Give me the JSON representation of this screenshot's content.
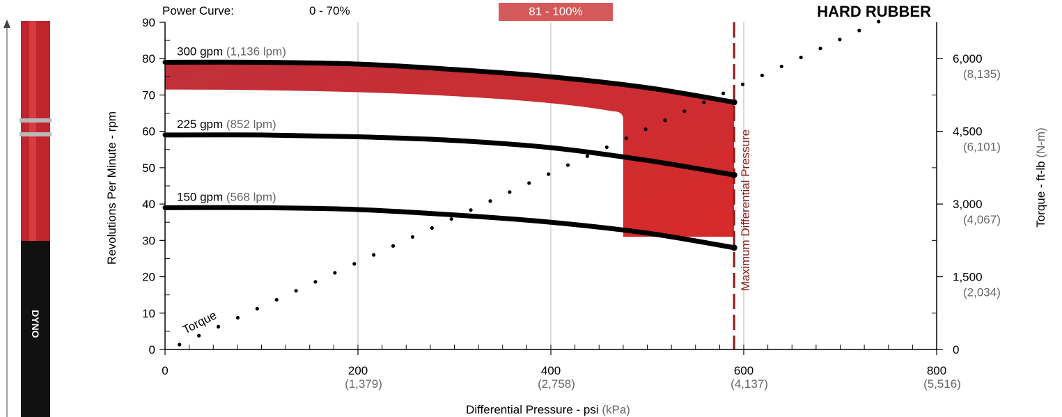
{
  "header": {
    "power_curve_label": "Power Curve:",
    "range_low": "0 - 70%",
    "range_high": "81 - 100%",
    "title": "HARD RUBBER"
  },
  "colors": {
    "accent_red": "#c62a32",
    "band_fill": "#c8363c",
    "legend_box": "#d45a5a",
    "max_line": "#8b1a1a",
    "grid": "#c0c0c0",
    "secondary_text": "#666666"
  },
  "chart_data": {
    "type": "line",
    "title": "HARD RUBBER",
    "xlabel": "Differential Pressure - psi",
    "xlabel_unit": "(kPa)",
    "ylabel": "Revolutions Per Minute - rpm",
    "y2label": "Torque - ft-lb",
    "y2label_unit": "(N-m)",
    "xlim": [
      0,
      800
    ],
    "ylim": [
      0,
      90
    ],
    "y2lim": [
      0,
      6750
    ],
    "grid": true,
    "x_ticks": [
      {
        "value": 0,
        "label": "0",
        "sub": ""
      },
      {
        "value": 200,
        "label": "200",
        "sub": "(1,379)"
      },
      {
        "value": 400,
        "label": "400",
        "sub": "(2,758)"
      },
      {
        "value": 600,
        "label": "600",
        "sub": "(4,137)"
      },
      {
        "value": 800,
        "label": "800",
        "sub": "(5,516)"
      }
    ],
    "y_ticks": [
      "0",
      "10",
      "20",
      "30",
      "40",
      "50",
      "60",
      "70",
      "80",
      "90"
    ],
    "y2_ticks": [
      {
        "value": 0,
        "label": "0",
        "sub": ""
      },
      {
        "value": 1500,
        "label": "1,500",
        "sub": "(2,034)"
      },
      {
        "value": 3000,
        "label": "3,000",
        "sub": "(4,067)"
      },
      {
        "value": 4500,
        "label": "4,500",
        "sub": "(6,101)"
      },
      {
        "value": 6000,
        "label": "6,000",
        "sub": "(8,135)"
      }
    ],
    "series": [
      {
        "name": "300 gpm",
        "name_sub": "(1,136 lpm)",
        "x": [
          0,
          100,
          200,
          300,
          400,
          500,
          590
        ],
        "y": [
          79,
          79,
          78.5,
          77,
          75,
          72,
          68
        ]
      },
      {
        "name": "225 gpm",
        "name_sub": "(852 lpm)",
        "x": [
          0,
          100,
          200,
          300,
          400,
          500,
          590
        ],
        "y": [
          59,
          59,
          58.5,
          57.5,
          55.5,
          52,
          48
        ]
      },
      {
        "name": "150 gpm",
        "name_sub": "(568 lpm)",
        "x": [
          0,
          100,
          200,
          300,
          400,
          500,
          590
        ],
        "y": [
          39,
          39,
          38.5,
          37,
          35,
          32,
          28
        ]
      }
    ],
    "torque": {
      "label": "Torque",
      "x": [
        15,
        760
      ],
      "y2": [
        100,
        6950
      ],
      "point_count": 38
    },
    "max_differential": {
      "x": 590,
      "label": "Maximum Differential Pressure"
    },
    "high_power_band": {
      "upper_y_start": 71.5,
      "knee_x": 475,
      "knee_y": 65.5,
      "lower_y": 31
    }
  }
}
